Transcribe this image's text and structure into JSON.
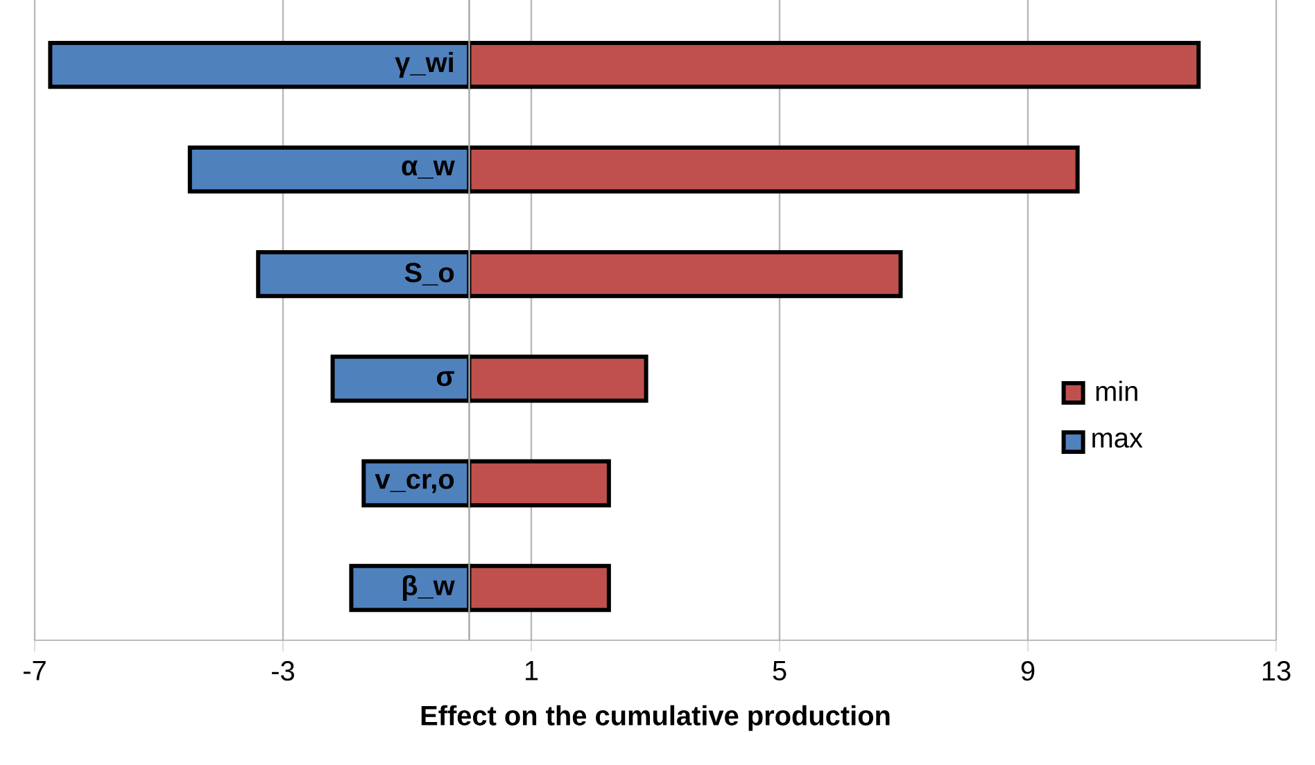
{
  "chart_data": {
    "type": "bar",
    "orientation": "horizontal",
    "xlabel": "Effect on the cumulative production",
    "categories": [
      "γ_wi",
      "α_w",
      "S_o",
      "σ",
      "v_cr,o",
      "β_w"
    ],
    "series": [
      {
        "name": "min",
        "color": "#c0504d",
        "values": [
          11.75,
          9.8,
          6.95,
          2.85,
          2.25,
          2.25
        ]
      },
      {
        "name": "max",
        "color": "#4f81bd",
        "values": [
          -6.75,
          -4.5,
          -3.4,
          -2.2,
          -1.7,
          -1.9
        ]
      }
    ],
    "xlim": [
      -7,
      13
    ],
    "xticks": [
      -7,
      -3,
      1,
      5,
      9,
      13
    ],
    "stacked": true,
    "grid": "x",
    "legend": "right"
  }
}
